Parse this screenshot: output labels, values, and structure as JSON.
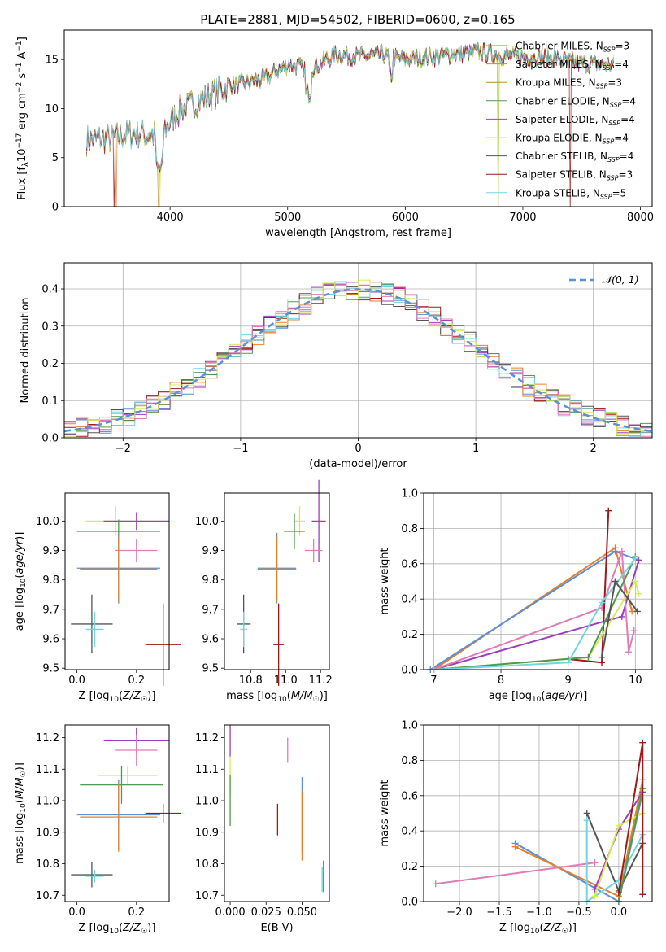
{
  "page": {
    "title": "PLATE=2881, MJD=54502, FIBERID=0600, z=0.165"
  },
  "series_colors": [
    "#5b8fd8",
    "#e5802a",
    "#bf8f1f",
    "#4f9a4f",
    "#9b3fbf",
    "#d6ea5a",
    "#555555",
    "#a01818",
    "#72d5e3",
    "#e27bb6"
  ],
  "chart_data": [
    {
      "id": "spectrum",
      "type": "line",
      "title": "PLATE=2881, MJD=54502, FIBERID=0600, z=0.165",
      "xlabel": "wavelength [Angstrom, rest frame]",
      "ylabel": "Flux [f_λ 10^-17 erg cm^-2 s^-1 A^-1]",
      "xlim": [
        3100,
        8100
      ],
      "ylim": [
        0,
        18
      ],
      "xticks": [
        "4000",
        "5000",
        "6000",
        "7000",
        "8000"
      ],
      "yticks": [
        "0",
        "5",
        "10",
        "15"
      ],
      "legend_position": "top-right",
      "x": [
        3300,
        3500,
        3700,
        3900,
        4100,
        4300,
        4500,
        4800,
        5000,
        5200,
        5400,
        5600,
        5800,
        6000,
        6300,
        6600,
        6900,
        7200,
        7500,
        7700
      ],
      "y": [
        6.8,
        7.0,
        7.5,
        7.2,
        10.0,
        11.0,
        12.3,
        13.0,
        14.5,
        14.0,
        15.5,
        15.3,
        15.5,
        15.0,
        15.4,
        15.8,
        15.3,
        15.2,
        14.6,
        14.5
      ],
      "series": [
        {
          "name": "Chabrier MILES, N_SSP=3"
        },
        {
          "name": "Salpeter MILES, N_SSP=4"
        },
        {
          "name": "Kroupa MILES, N_SSP=3"
        },
        {
          "name": "Chabrier ELODIE, N_SSP=4"
        },
        {
          "name": "Salpeter ELODIE, N_SSP=4"
        },
        {
          "name": "Kroupa ELODIE, N_SSP=4"
        },
        {
          "name": "Chabrier STELIB, N_SSP=4"
        },
        {
          "name": "Salpeter STELIB, N_SSP=3"
        },
        {
          "name": "Kroupa STELIB, N_SSP=5"
        }
      ]
    },
    {
      "id": "residuals",
      "type": "line",
      "xlabel": "(data-model)/error",
      "ylabel": "Normed distribution",
      "xlim": [
        -2.5,
        2.5
      ],
      "ylim": [
        0,
        0.47
      ],
      "xticks": [
        "−2",
        "−1",
        "0",
        "1",
        "2"
      ],
      "yticks": [
        "0.0",
        "0.1",
        "0.2",
        "0.3",
        "0.4"
      ],
      "grid": true,
      "legend": "𝒩(0, 1)",
      "legend_position": "top-right",
      "bin_width": 0.1
    },
    {
      "id": "z-age",
      "type": "scatter",
      "xlabel": "Z [log10(Z/Z☉)]",
      "ylabel": "age [log10(age/yr)]",
      "xlim": [
        -0.04,
        0.31
      ],
      "ylim": [
        9.495,
        10.095
      ],
      "xticks": [
        "0.0",
        "0.2"
      ],
      "yticks": [
        "9.5",
        "9.6",
        "9.7",
        "9.8",
        "9.9",
        "10.0"
      ],
      "points": [
        {
          "x": 0.13,
          "y": 10.0,
          "xerr": 0.1,
          "yerr": 0.05,
          "c": 5
        },
        {
          "x": 0.2,
          "y": 10.0,
          "xerr": 0.11,
          "yerr": 0.03,
          "c": 4
        },
        {
          "x": 0.14,
          "y": 9.965,
          "xerr": 0.14,
          "yerr": 0.04,
          "c": 3
        },
        {
          "x": 0.2,
          "y": 9.9,
          "xerr": 0.07,
          "yerr": 0.04,
          "c": 9
        },
        {
          "x": 0.14,
          "y": 9.84,
          "xerr": 0.14,
          "yerr": 0.12,
          "c": 0
        },
        {
          "x": 0.14,
          "y": 9.837,
          "xerr": 0.13,
          "yerr": 0.11,
          "c": 1
        },
        {
          "x": 0.05,
          "y": 9.65,
          "xerr": 0.07,
          "yerr": 0.1,
          "c": 6
        },
        {
          "x": 0.06,
          "y": 9.632,
          "xerr": 0.03,
          "yerr": 0.06,
          "c": 8
        },
        {
          "x": 0.29,
          "y": 9.58,
          "xerr": 0.06,
          "yerr": 0.14,
          "c": 7
        }
      ]
    },
    {
      "id": "mass-age",
      "type": "scatter",
      "xlabel": "mass [log10(M/M☉)]",
      "ylabel": "",
      "xlim": [
        10.65,
        11.25
      ],
      "ylim": [
        9.495,
        10.095
      ],
      "xticks": [
        "10.8",
        "11.0",
        "11.2"
      ],
      "yticks": [
        "9.5",
        "9.6",
        "9.7",
        "9.8",
        "9.9",
        "10.0"
      ],
      "points": [
        {
          "x": 11.08,
          "y": 10.0,
          "xerr": 0.03,
          "yerr": 0.05,
          "c": 5
        },
        {
          "x": 11.19,
          "y": 10.0,
          "xerr": 0.04,
          "yerr": 0.14,
          "c": 4
        },
        {
          "x": 11.05,
          "y": 9.965,
          "xerr": 0.06,
          "yerr": 0.06,
          "c": 3
        },
        {
          "x": 11.16,
          "y": 9.9,
          "xerr": 0.05,
          "yerr": 0.04,
          "c": 9
        },
        {
          "x": 10.95,
          "y": 9.84,
          "xerr": 0.11,
          "yerr": 0.12,
          "c": 0
        },
        {
          "x": 10.95,
          "y": 9.837,
          "xerr": 0.11,
          "yerr": 0.11,
          "c": 1
        },
        {
          "x": 10.76,
          "y": 9.65,
          "xerr": 0.04,
          "yerr": 0.1,
          "c": 6
        },
        {
          "x": 10.76,
          "y": 9.632,
          "xerr": 0.02,
          "yerr": 0.06,
          "c": 8
        },
        {
          "x": 10.96,
          "y": 9.58,
          "xerr": 0.03,
          "yerr": 0.14,
          "c": 7
        }
      ]
    },
    {
      "id": "age-weight",
      "type": "line",
      "xlabel": "age [log10(age/yr)]",
      "ylabel": "mass weight",
      "xlim": [
        6.85,
        10.25
      ],
      "ylim": [
        0,
        1
      ],
      "xticks": [
        "7",
        "8",
        "9",
        "10"
      ],
      "yticks": [
        "0.0",
        "0.2",
        "0.4",
        "0.6",
        "0.8",
        "1.0"
      ],
      "grid": true,
      "series": [
        {
          "c": 1,
          "points": [
            [
              7.0,
              0.0
            ],
            [
              9.7,
              0.69
            ],
            [
              9.95,
              0.33
            ]
          ]
        },
        {
          "c": 0,
          "points": [
            [
              6.95,
              0.0
            ],
            [
              9.7,
              0.67
            ],
            [
              10.05,
              0.62
            ]
          ]
        },
        {
          "c": 4,
          "points": [
            [
              7.0,
              0.0
            ],
            [
              9.6,
              0.28
            ],
            [
              9.8,
              0.3
            ],
            [
              10.05,
              0.62
            ]
          ]
        },
        {
          "c": 9,
          "points": [
            [
              7.0,
              0.0
            ],
            [
              9.5,
              0.35
            ],
            [
              9.8,
              0.67
            ],
            [
              9.9,
              0.1
            ],
            [
              9.98,
              0.22
            ]
          ]
        },
        {
          "c": 7,
          "points": [
            [
              9.0,
              0.06
            ],
            [
              9.5,
              0.04
            ],
            [
              9.6,
              0.9
            ]
          ]
        },
        {
          "c": 5,
          "points": [
            [
              7.0,
              0.0
            ],
            [
              9.3,
              0.07
            ],
            [
              10.0,
              0.5
            ],
            [
              10.05,
              0.43
            ]
          ]
        },
        {
          "c": 3,
          "points": [
            [
              7.0,
              0.0
            ],
            [
              9.3,
              0.07
            ],
            [
              10.0,
              0.64
            ]
          ]
        },
        {
          "c": 8,
          "points": [
            [
              7.0,
              0.0
            ],
            [
              9.0,
              0.04
            ],
            [
              9.5,
              0.38
            ],
            [
              10.0,
              0.63
            ]
          ]
        },
        {
          "c": 6,
          "points": [
            [
              9.5,
              0.07
            ],
            [
              9.7,
              0.5
            ],
            [
              10.03,
              0.33
            ]
          ]
        }
      ]
    },
    {
      "id": "z-mass",
      "type": "scatter",
      "xlabel": "Z [log10(Z/Z☉)]",
      "ylabel": "mass [log10(M/M☉)]",
      "xlim": [
        -0.04,
        0.31
      ],
      "ylim": [
        10.68,
        11.24
      ],
      "xticks": [
        "0.0",
        "0.2"
      ],
      "yticks": [
        "10.7",
        "10.8",
        "10.9",
        "11.0",
        "11.1",
        "11.2"
      ],
      "points": [
        {
          "x": 0.2,
          "y": 11.19,
          "xerr": 0.11,
          "yerr": 0.04,
          "c": 4
        },
        {
          "x": 0.2,
          "y": 11.16,
          "xerr": 0.07,
          "yerr": 0.05,
          "c": 9
        },
        {
          "x": 0.17,
          "y": 11.08,
          "xerr": 0.1,
          "yerr": 0.03,
          "c": 5
        },
        {
          "x": 0.15,
          "y": 11.05,
          "xerr": 0.14,
          "yerr": 0.06,
          "c": 3
        },
        {
          "x": 0.29,
          "y": 10.96,
          "xerr": 0.06,
          "yerr": 0.03,
          "c": 7
        },
        {
          "x": 0.14,
          "y": 10.955,
          "xerr": 0.14,
          "yerr": 0.11,
          "c": 0
        },
        {
          "x": 0.14,
          "y": 10.948,
          "xerr": 0.13,
          "yerr": 0.11,
          "c": 1
        },
        {
          "x": 0.05,
          "y": 10.765,
          "xerr": 0.07,
          "yerr": 0.04,
          "c": 6
        },
        {
          "x": 0.06,
          "y": 10.76,
          "xerr": 0.03,
          "yerr": 0.02,
          "c": 8
        }
      ]
    },
    {
      "id": "ebv-mass",
      "type": "scatter",
      "xlabel": "E(B-V)",
      "ylabel": "",
      "xlim": [
        -0.004,
        0.069
      ],
      "ylim": [
        10.68,
        11.24
      ],
      "xticks": [
        "0.000",
        "0.025",
        "0.050"
      ],
      "yticks": [
        "10.7",
        "10.8",
        "10.9",
        "11.0",
        "11.1",
        "11.2"
      ],
      "points": [
        {
          "x": 0.0,
          "y": 11.19,
          "xerr": 0.0,
          "yerr": 0.05,
          "c": 4
        },
        {
          "x": 0.0,
          "y": 11.08,
          "xerr": 0.0,
          "yerr": 0.06,
          "c": 5
        },
        {
          "x": 0.0,
          "y": 11.0,
          "xerr": 0.0,
          "yerr": 0.08,
          "c": 3
        },
        {
          "x": 0.04,
          "y": 11.16,
          "xerr": 0.0,
          "yerr": 0.04,
          "c": 9
        },
        {
          "x": 0.033,
          "y": 10.94,
          "xerr": 0.0,
          "yerr": 0.05,
          "c": 7
        },
        {
          "x": 0.05,
          "y": 10.955,
          "xerr": 0.0,
          "yerr": 0.12,
          "c": 0
        },
        {
          "x": 0.05,
          "y": 10.92,
          "xerr": 0.0,
          "yerr": 0.11,
          "c": 1
        },
        {
          "x": 0.065,
          "y": 10.76,
          "xerr": 0.0,
          "yerr": 0.05,
          "c": 6
        },
        {
          "x": 0.064,
          "y": 10.75,
          "xerr": 0.0,
          "yerr": 0.04,
          "c": 8
        }
      ]
    },
    {
      "id": "z-weight",
      "type": "line",
      "xlabel": "Z [log10(Z/Z☉)]",
      "ylabel": "mass weight",
      "xlim": [
        -2.45,
        0.42
      ],
      "ylim": [
        0,
        1
      ],
      "xticks": [
        "−2.0",
        "−1.5",
        "−1.0",
        "−0.5",
        "0.0"
      ],
      "yticks": [
        "0.0",
        "0.2",
        "0.4",
        "0.6",
        "0.8",
        "1.0"
      ],
      "grid": true,
      "series": [
        {
          "c": 9,
          "points": [
            [
              -2.3,
              0.1
            ],
            [
              -0.3,
              0.22
            ]
          ]
        },
        {
          "c": 0,
          "points": [
            [
              -1.3,
              0.33
            ],
            [
              0.0,
              0.0
            ],
            [
              0.3,
              0.62
            ]
          ]
        },
        {
          "c": 1,
          "points": [
            [
              -1.3,
              0.31
            ],
            [
              0.0,
              0.03
            ],
            [
              0.3,
              0.69
            ]
          ]
        },
        {
          "c": 6,
          "points": [
            [
              -0.4,
              0.5
            ],
            [
              0.0,
              0.06
            ],
            [
              0.3,
              0.33
            ]
          ]
        },
        {
          "c": 8,
          "points": [
            [
              -0.4,
              0.46
            ],
            [
              -0.4,
              0.0
            ],
            [
              0.0,
              0.12
            ],
            [
              0.3,
              0.38
            ]
          ]
        },
        {
          "c": 4,
          "points": [
            [
              -0.3,
              0.07
            ],
            [
              0.0,
              0.41
            ],
            [
              0.3,
              0.62
            ]
          ]
        },
        {
          "c": 5,
          "points": [
            [
              -0.3,
              0.03
            ],
            [
              0.0,
              0.43
            ],
            [
              0.3,
              0.5
            ]
          ]
        },
        {
          "c": 3,
          "points": [
            [
              0.0,
              0.0
            ],
            [
              0.3,
              0.64
            ]
          ]
        },
        {
          "c": 7,
          "points": [
            [
              0.0,
              0.05
            ],
            [
              0.3,
              0.9
            ],
            [
              0.3,
              0.04
            ]
          ]
        }
      ]
    }
  ]
}
